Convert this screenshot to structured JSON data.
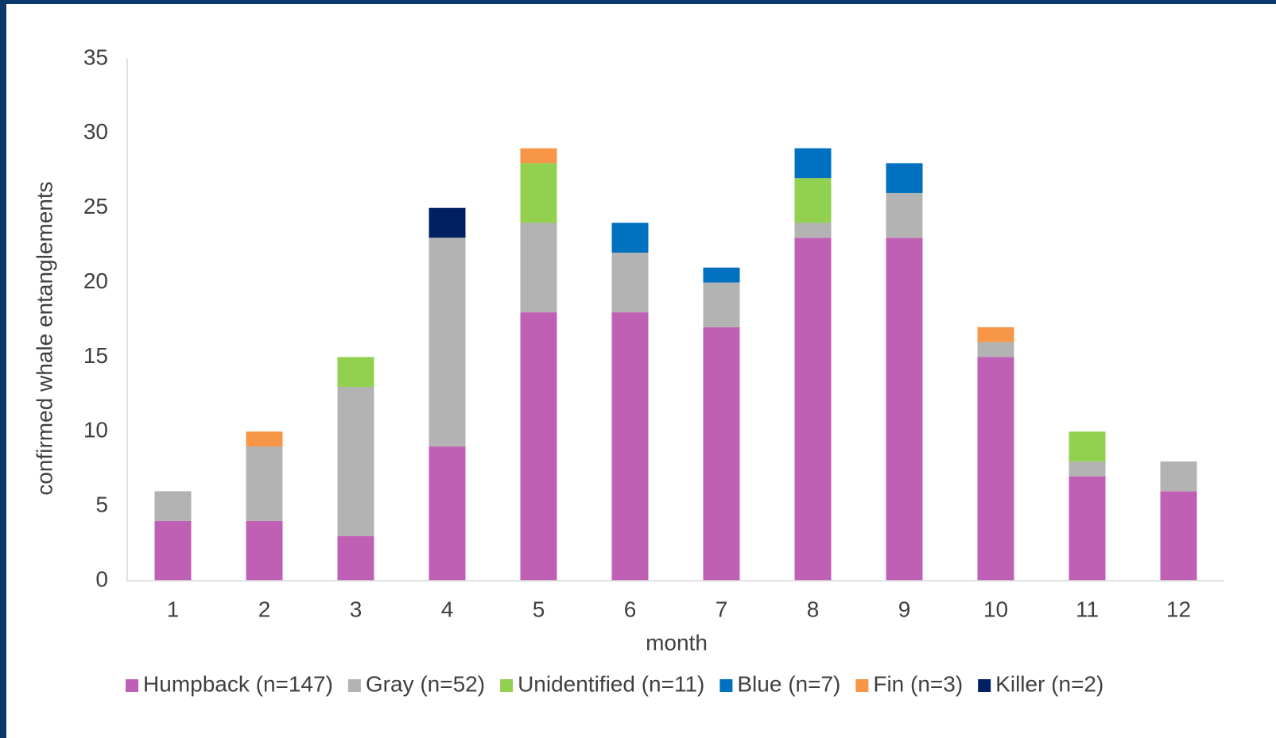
{
  "chart_data": {
    "type": "stacked_bar",
    "x_label": "month",
    "y_label": "confirmed whale entanglements",
    "categories": [
      "1",
      "2",
      "3",
      "4",
      "5",
      "6",
      "7",
      "8",
      "9",
      "10",
      "11",
      "12"
    ],
    "series": [
      {
        "name": "Humpback (n=147)",
        "color": "#c060b4",
        "values": [
          4,
          4,
          3,
          9,
          18,
          18,
          17,
          23,
          23,
          15,
          7,
          6
        ]
      },
      {
        "name": "Gray (n=52)",
        "color": "#b3b3b3",
        "values": [
          2,
          5,
          10,
          14,
          6,
          4,
          3,
          1,
          3,
          1,
          1,
          2
        ]
      },
      {
        "name": "Unidentified (n=11)",
        "color": "#92d050",
        "values": [
          0,
          0,
          2,
          0,
          4,
          0,
          0,
          3,
          0,
          0,
          2,
          0
        ]
      },
      {
        "name": "Blue (n=7)",
        "color": "#0070c0",
        "values": [
          0,
          0,
          0,
          0,
          0,
          2,
          1,
          2,
          2,
          0,
          0,
          0
        ]
      },
      {
        "name": "Fin (n=3)",
        "color": "#f79646",
        "values": [
          0,
          1,
          0,
          0,
          1,
          0,
          0,
          0,
          0,
          1,
          0,
          0
        ]
      },
      {
        "name": "Killer (n=2)",
        "color": "#002060",
        "values": [
          0,
          0,
          0,
          2,
          0,
          0,
          0,
          0,
          0,
          0,
          0,
          0
        ]
      }
    ],
    "ylim": [
      0,
      35
    ],
    "yticks": [
      0,
      5,
      10,
      15,
      20,
      25,
      30,
      35
    ],
    "legend": "bottom"
  }
}
